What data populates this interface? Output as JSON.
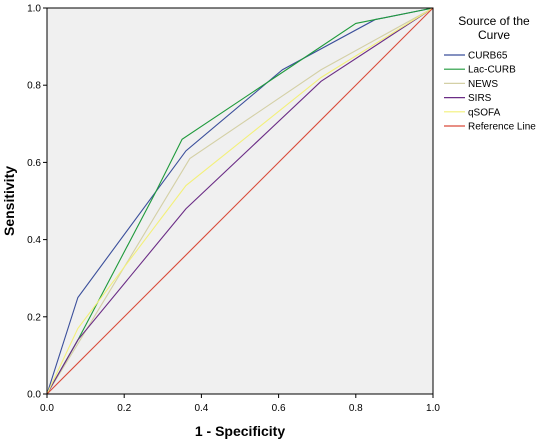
{
  "chart_data": {
    "type": "line",
    "title": "",
    "xlabel": "1 - Specificity",
    "ylabel": "Sensitivity",
    "xlim": [
      0,
      1
    ],
    "ylim": [
      0,
      1
    ],
    "xticks": [
      "0.0",
      "0.2",
      "0.4",
      "0.6",
      "0.8",
      "1.0"
    ],
    "yticks": [
      "0.0",
      "0.2",
      "0.4",
      "0.6",
      "0.8",
      "1.0"
    ],
    "grid": false,
    "legend": {
      "title": "Source of the Curve",
      "placement": "right"
    },
    "background": "#f0f0f0",
    "series": [
      {
        "name": "CURB65",
        "color": "#3b4f9b",
        "x": [
          0,
          0.08,
          0.36,
          0.61,
          0.85,
          1
        ],
        "y": [
          0,
          0.25,
          0.63,
          0.84,
          0.97,
          1
        ]
      },
      {
        "name": "Lac-CURB",
        "color": "#1f9a3c",
        "x": [
          0,
          0.08,
          0.28,
          0.35,
          0.62,
          0.8,
          0.85,
          1
        ],
        "y": [
          0,
          0.14,
          0.52,
          0.66,
          0.84,
          0.96,
          0.97,
          1
        ]
      },
      {
        "name": "NEWS",
        "color": "#d4d0a6",
        "x": [
          0,
          0.08,
          0.37,
          0.71,
          1
        ],
        "y": [
          0,
          0.13,
          0.61,
          0.84,
          1
        ]
      },
      {
        "name": "SIRS",
        "color": "#6b2d86",
        "x": [
          0,
          0.08,
          0.36,
          0.71,
          1
        ],
        "y": [
          0,
          0.14,
          0.48,
          0.81,
          1
        ]
      },
      {
        "name": "qSOFA",
        "color": "#f3f07a",
        "x": [
          0,
          0.08,
          0.36,
          0.71,
          1
        ],
        "y": [
          0,
          0.17,
          0.54,
          0.82,
          1
        ]
      },
      {
        "name": "Reference Line",
        "color": "#d94a3a",
        "x": [
          0,
          1
        ],
        "y": [
          0,
          1
        ]
      }
    ]
  }
}
